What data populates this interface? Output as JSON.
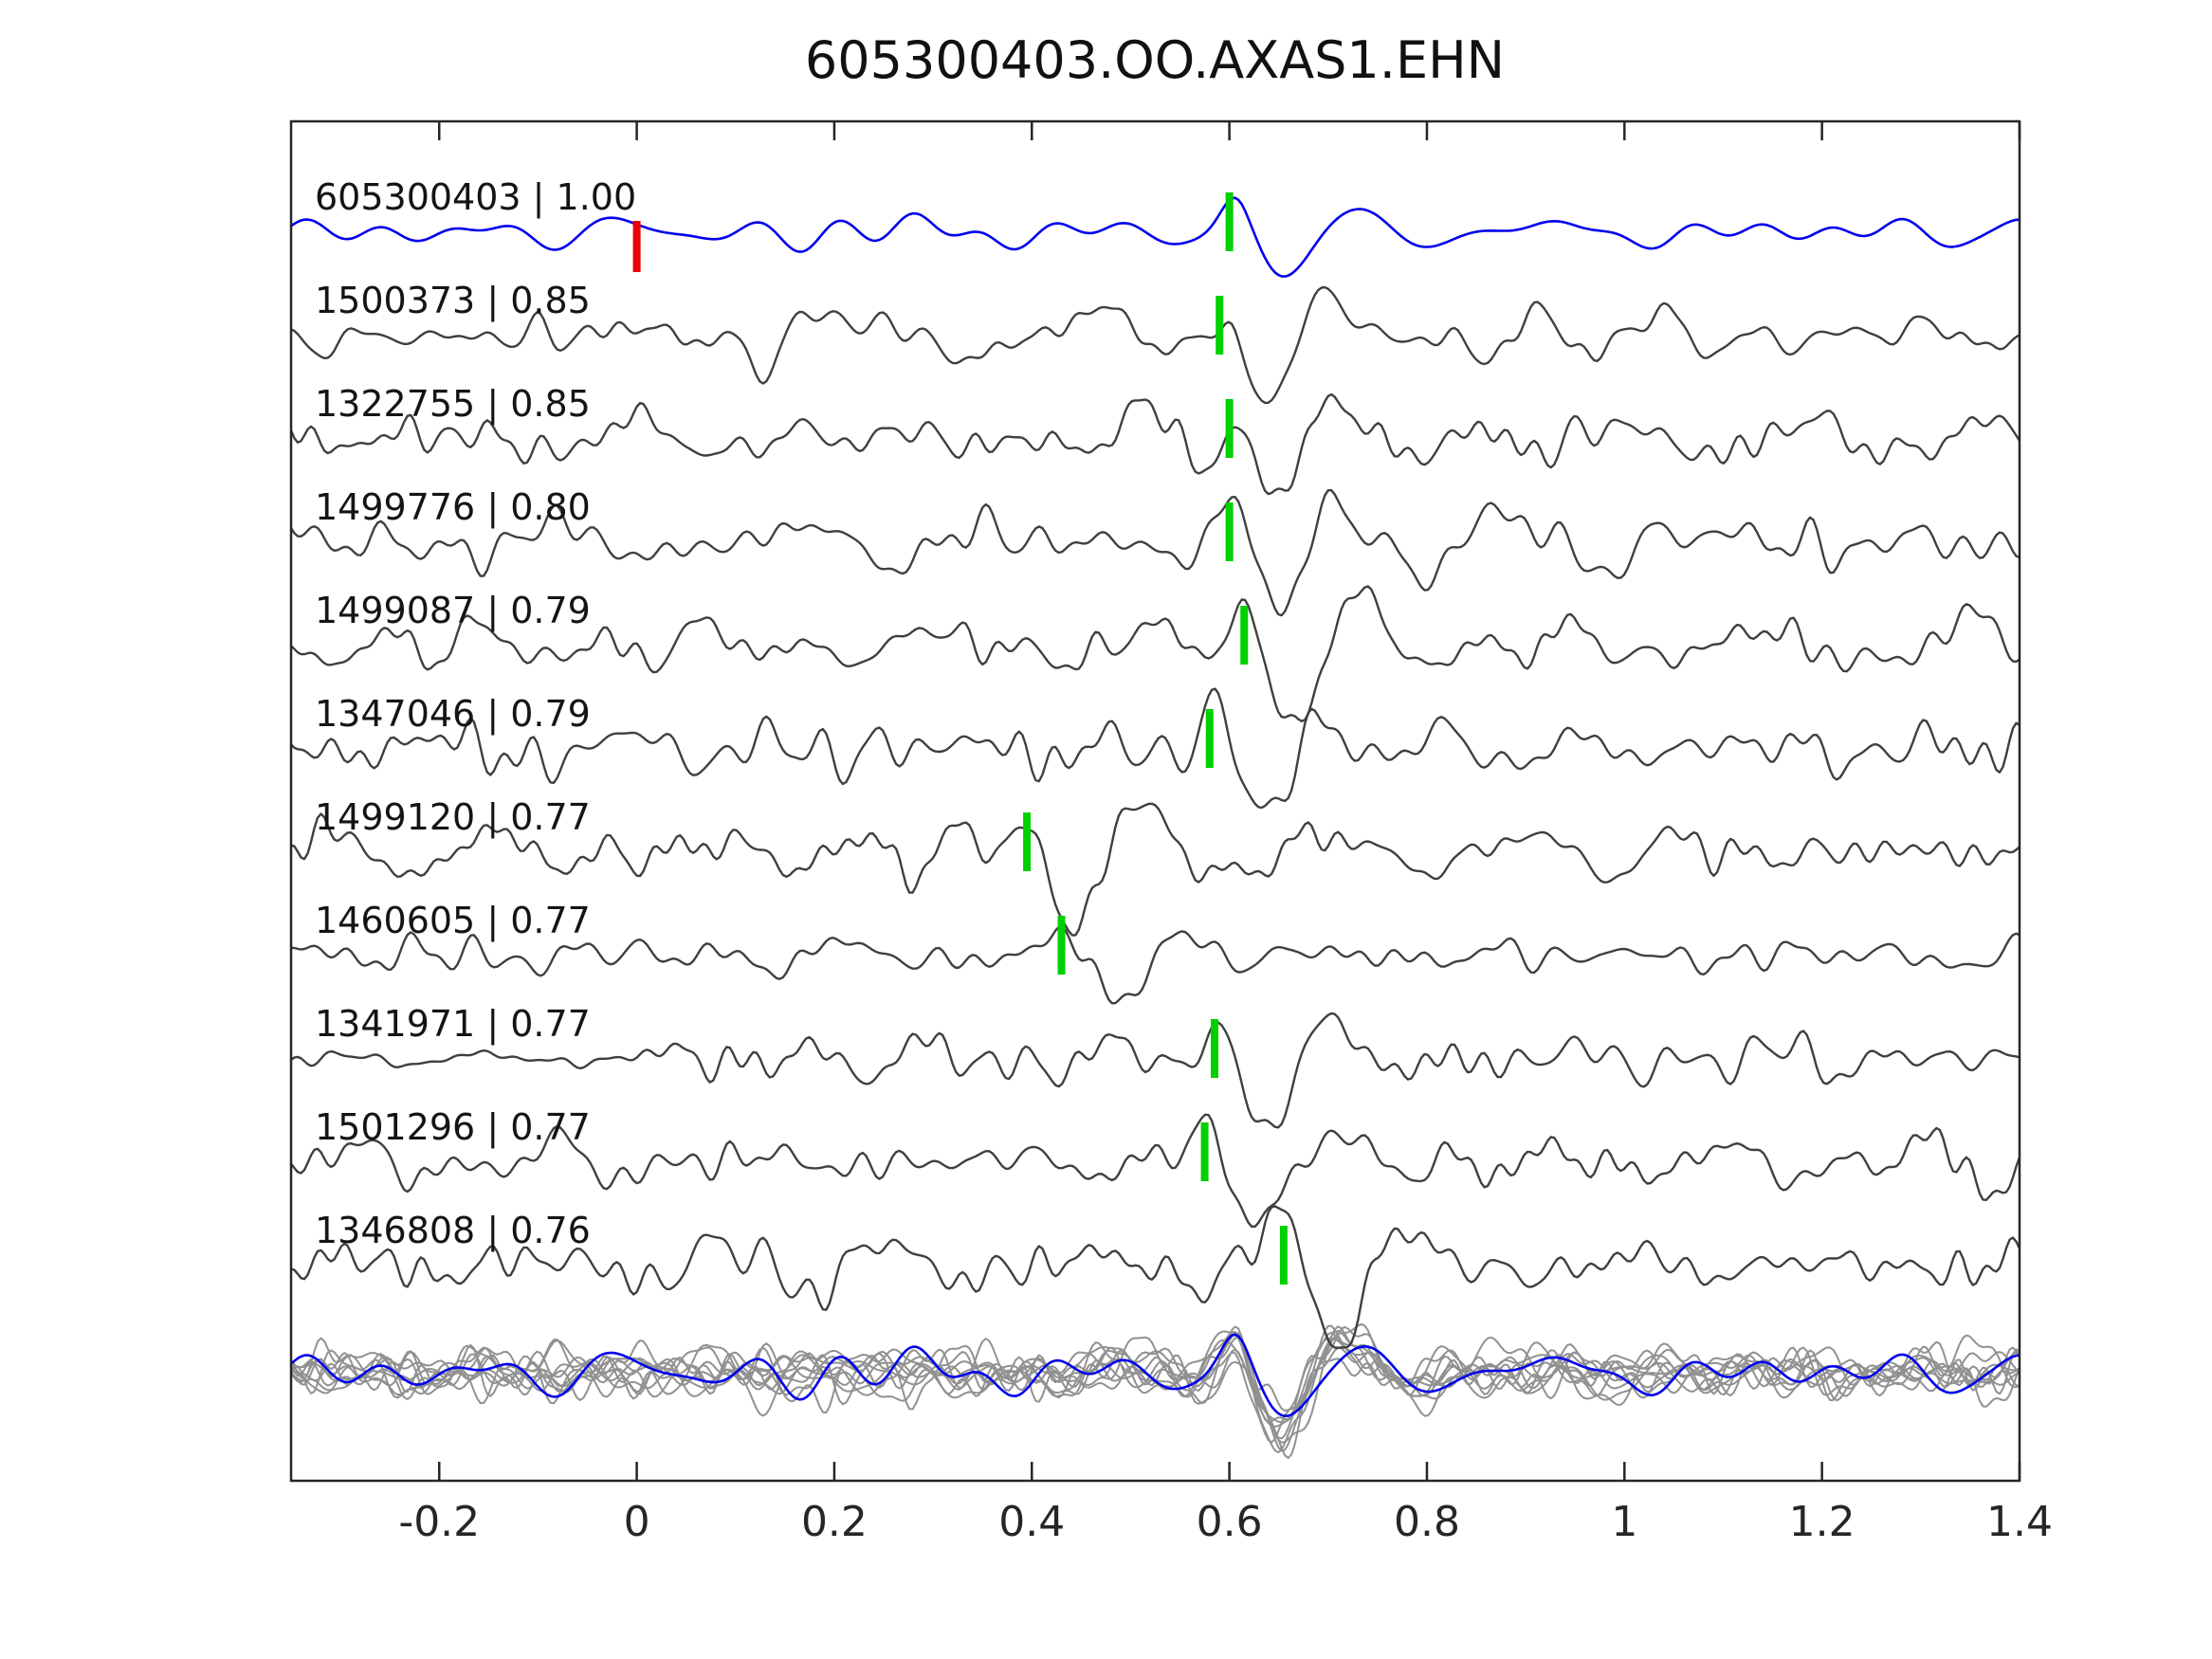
{
  "title": "605300403.OO.AXAS1.EHN",
  "colors": {
    "template_trace": "#0000ee",
    "match_trace": "#3f3f3f",
    "overlay_gray": "#919191",
    "pick_marker": "#00d000",
    "template_marker": "#ee0000",
    "axis": "#262626",
    "background": "#ffffff"
  },
  "chart_data": {
    "type": "line",
    "title": "605300403.OO.AXAS1.EHN",
    "xlabel": "",
    "ylabel": "",
    "grid": false,
    "legend": null,
    "xlim": [
      -0.35,
      1.4
    ],
    "x_tick_values": [
      -0.2,
      0,
      0.2,
      0.4,
      0.6,
      0.8,
      1,
      1.2,
      1.4
    ],
    "x_tick_labels": [
      "-0.2",
      "0",
      "0.2",
      "0.4",
      "0.6",
      "0.8",
      "1",
      "1.2",
      "1.4"
    ],
    "traces": [
      {
        "id": "605300403",
        "correlation": "1.00",
        "label": "605300403 | 1.00",
        "role": "template",
        "pick_time": 0.6,
        "template_mark_time": 0.0
      },
      {
        "id": "1500373",
        "correlation": "0.85",
        "label": "1500373 | 0.85",
        "role": "match",
        "pick_time": 0.59
      },
      {
        "id": "1322755",
        "correlation": "0.85",
        "label": "1322755 | 0.85",
        "role": "match",
        "pick_time": 0.6
      },
      {
        "id": "1499776",
        "correlation": "0.80",
        "label": "1499776 | 0.80",
        "role": "match",
        "pick_time": 0.6
      },
      {
        "id": "1499087",
        "correlation": "0.79",
        "label": "1499087 | 0.79",
        "role": "match",
        "pick_time": 0.615
      },
      {
        "id": "1347046",
        "correlation": "0.79",
        "label": "1347046 | 0.79",
        "role": "match",
        "pick_time": 0.58
      },
      {
        "id": "1499120",
        "correlation": "0.77",
        "label": "1499120 | 0.77",
        "role": "match",
        "pick_time": 0.395
      },
      {
        "id": "1460605",
        "correlation": "0.77",
        "label": "1460605 | 0.77",
        "role": "match",
        "pick_time": 0.43
      },
      {
        "id": "1341971",
        "correlation": "0.77",
        "label": "1341971 | 0.77",
        "role": "match",
        "pick_time": 0.585
      },
      {
        "id": "1501296",
        "correlation": "0.77",
        "label": "1501296 | 0.77",
        "role": "match",
        "pick_time": 0.575
      },
      {
        "id": "1346808",
        "correlation": "0.76",
        "label": "1346808 | 0.76",
        "role": "match",
        "pick_time": 0.655
      }
    ],
    "overlay_stack": {
      "description": "all matched traces superimposed in gray with blue template on top, aligned on the common arrival",
      "aligned_at": 0.62,
      "includes_template": true
    }
  }
}
